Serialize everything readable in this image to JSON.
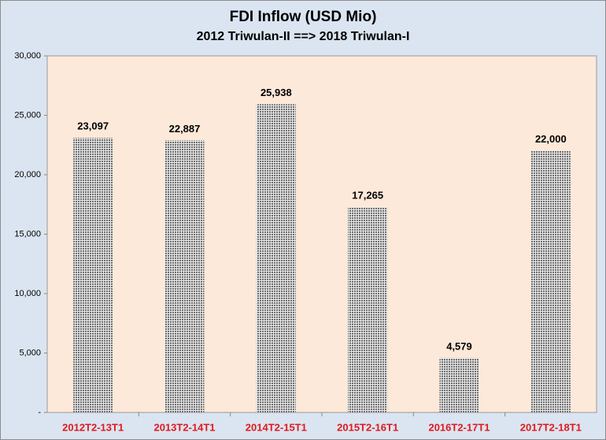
{
  "chart_data": {
    "type": "bar",
    "title": "FDI Inflow (USD Mio)",
    "subtitle": "2012 Triwulan-II ==> 2018 Triwulan-I",
    "categories": [
      "2012T2-13T1",
      "2013T2-14T1",
      "2014T2-15T1",
      "2015T2-16T1",
      "2016T2-17T1",
      "2017T2-18T1"
    ],
    "values": [
      23097,
      22887,
      25938,
      17265,
      4579,
      22000
    ],
    "value_labels": [
      "23,097",
      "22,887",
      "25,938",
      "17,265",
      "4,579",
      "22,000"
    ],
    "color": "#6e6e6e",
    "ylim": [
      0,
      30000
    ],
    "yticks": [
      {
        "value": 0,
        "label": "-"
      },
      {
        "value": 5000,
        "label": "5,000"
      },
      {
        "value": 10000,
        "label": "10,000"
      },
      {
        "value": 15000,
        "label": "15,000"
      },
      {
        "value": 20000,
        "label": "20,000"
      },
      {
        "value": 25000,
        "label": "25,000"
      },
      {
        "value": 30000,
        "label": "30,000"
      }
    ],
    "grid": false
  }
}
